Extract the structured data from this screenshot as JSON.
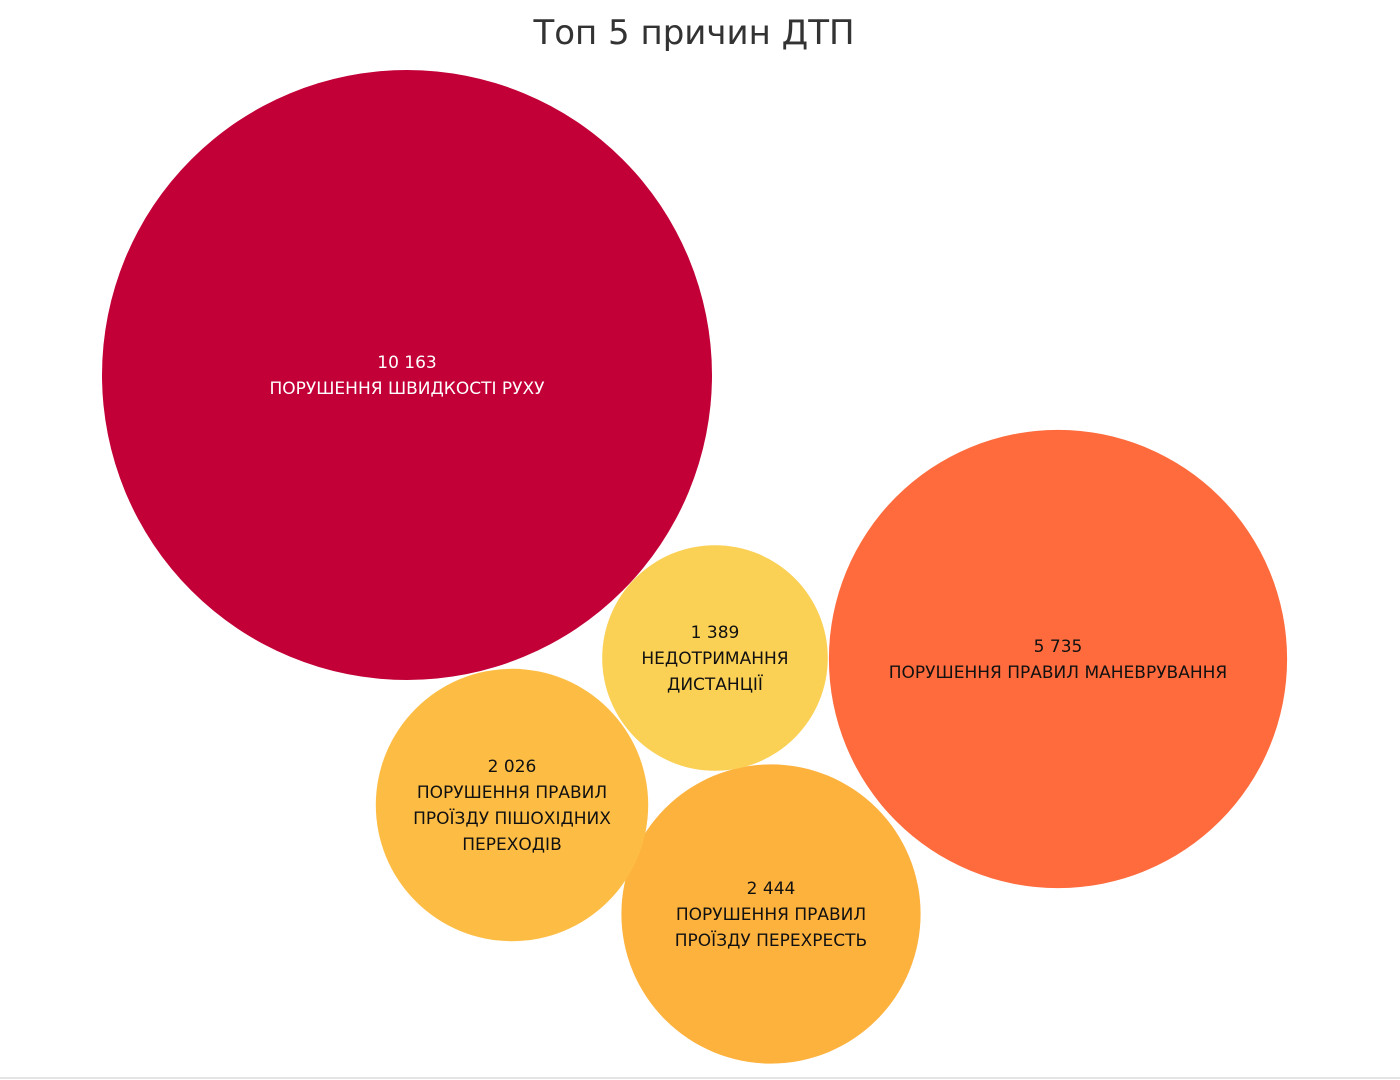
{
  "chart_data": {
    "type": "bubble",
    "title": "Топ 5 причин ДТП",
    "bubbles": [
      {
        "value": 10163,
        "value_label": "10 163",
        "label_lines": [
          "ПОРУШЕННЯ ШВИДКОСТІ РУХУ"
        ],
        "color": "#c20037",
        "text_color": "#ffffff"
      },
      {
        "value": 5735,
        "value_label": "5 735",
        "label_lines": [
          "ПОРУШЕННЯ ПРАВИЛ МАНЕВРУВАННЯ"
        ],
        "color": "#ff6b3d",
        "text_color": "#111111"
      },
      {
        "value": 2444,
        "value_label": "2 444",
        "label_lines": [
          "ПОРУШЕННЯ ПРАВИЛ",
          "ПРОЇЗДУ ПЕРЕХРЕСТЬ"
        ],
        "color": "#fdb23e",
        "text_color": "#111111"
      },
      {
        "value": 2026,
        "value_label": "2 026",
        "label_lines": [
          "ПОРУШЕННЯ ПРАВИЛ",
          "ПРОЇЗДУ ПІШОХІДНИХ",
          "ПЕРЕХОДІВ"
        ],
        "color": "#fdbd45",
        "text_color": "#111111"
      },
      {
        "value": 1389,
        "value_label": "1 389",
        "label_lines": [
          "НЕДОТРИМАННЯ",
          "ДИСТАНЦІЇ"
        ],
        "color": "#fad055",
        "text_color": "#111111"
      }
    ]
  }
}
